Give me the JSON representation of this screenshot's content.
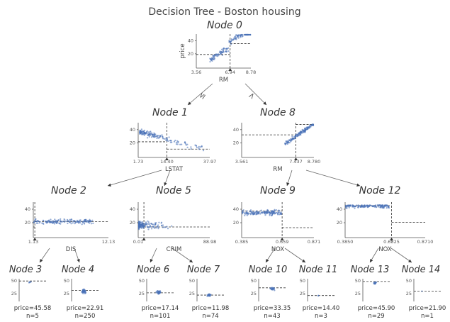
{
  "title": "Decision Tree - Boston housing",
  "colors": {
    "points": "#4a72b8",
    "text": "#444444",
    "edges": "#666666"
  },
  "edge_labels": {
    "left": "≤",
    "right": ">"
  },
  "nodes": [
    {
      "id": "node0",
      "label": "Node 0",
      "feature": "RM",
      "ylabel": "price",
      "xticks": [
        "3.56",
        "6.94",
        "8.78"
      ],
      "yticks": [
        "20",
        "40"
      ]
    },
    {
      "id": "node1",
      "label": "Node 1",
      "feature": "LSTAT",
      "xticks": [
        "1.73",
        "14.40",
        "37.97"
      ],
      "yticks": [
        "20",
        "40"
      ]
    },
    {
      "id": "node8",
      "label": "Node 8",
      "feature": "RM",
      "xticks": [
        "3.561",
        "7.437",
        "8.780"
      ],
      "yticks": [
        "20",
        "40"
      ]
    },
    {
      "id": "node2",
      "label": "Node 2",
      "feature": "DIS",
      "xticks": [
        "1.13",
        "",
        "12.13"
      ],
      "yticks": [
        "20",
        "40"
      ]
    },
    {
      "id": "node5",
      "label": "Node 5",
      "feature": "CRIM",
      "xticks": [
        "0.01",
        "",
        "88.98"
      ],
      "yticks": [
        "20",
        "40"
      ]
    },
    {
      "id": "node9",
      "label": "Node 9",
      "feature": "NOX",
      "xticks": [
        "0.385",
        "0.659",
        "0.871"
      ],
      "yticks": [
        "20",
        "40"
      ]
    },
    {
      "id": "node12",
      "label": "Node 12",
      "feature": "NOX",
      "xticks": [
        "0.3850",
        "0.6825",
        "0.8710"
      ],
      "yticks": [
        "20",
        "40"
      ]
    }
  ],
  "leaves": [
    {
      "id": "node3",
      "label": "Node 3",
      "price": "price=45.58",
      "n": "n=5",
      "yticks": [
        "25",
        "50"
      ]
    },
    {
      "id": "node4",
      "label": "Node 4",
      "price": "price=22.91",
      "n": "n=250",
      "yticks": [
        "25",
        "50"
      ]
    },
    {
      "id": "node6",
      "label": "Node 6",
      "price": "price=17.14",
      "n": "n=101",
      "yticks": [
        "25",
        "50"
      ]
    },
    {
      "id": "node7",
      "label": "Node 7",
      "price": "price=11.98",
      "n": "n=74",
      "yticks": [
        "25",
        "50"
      ]
    },
    {
      "id": "node10",
      "label": "Node 10",
      "price": "price=33.35",
      "n": "n=43",
      "yticks": [
        "25",
        "50"
      ]
    },
    {
      "id": "node11",
      "label": "Node 11",
      "price": "price=14.40",
      "n": "n=3",
      "yticks": [
        "25",
        "50"
      ]
    },
    {
      "id": "node13",
      "label": "Node 13",
      "price": "price=45.90",
      "n": "n=29",
      "yticks": [
        "25",
        "50"
      ]
    },
    {
      "id": "node14",
      "label": "Node 14",
      "price": "price=21.90",
      "n": "n=1",
      "yticks": [
        "25",
        "50"
      ]
    }
  ]
}
